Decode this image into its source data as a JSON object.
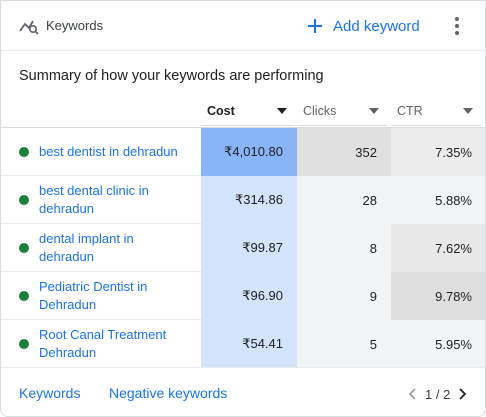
{
  "header": {
    "title": "Keywords",
    "add_label": "Add keyword"
  },
  "summary": "Summary of how your keywords are performing",
  "columns": [
    {
      "label": "Cost",
      "active": true
    },
    {
      "label": "Clicks",
      "active": false
    },
    {
      "label": "CTR",
      "active": false
    }
  ],
  "rows": [
    {
      "keyword": "best dentist in dehradun",
      "cost": "₹4,010.80",
      "clicks": "352",
      "ctr": "7.35%",
      "cost_bg": "#8ab4f8",
      "ctr_bg": "#ececec"
    },
    {
      "keyword": "best dental clinic in dehradun",
      "cost": "₹314.86",
      "clicks": "28",
      "ctr": "5.88%",
      "cost_bg": "#d2e3fc",
      "ctr_bg": "#f1f3f4"
    },
    {
      "keyword": "dental implant in dehradun",
      "cost": "₹99.87",
      "clicks": "8",
      "ctr": "7.62%",
      "cost_bg": "#d2e3fc",
      "ctr_bg": "#e8e8e8"
    },
    {
      "keyword": "Pediatric Dentist in Dehradun",
      "cost": "₹96.90",
      "clicks": "9",
      "ctr": "9.78%",
      "cost_bg": "#d2e3fc",
      "ctr_bg": "#dedede"
    },
    {
      "keyword": "Root Canal Treatment Dehradun",
      "cost": "₹54.41",
      "clicks": "5",
      "ctr": "5.95%",
      "cost_bg": "#d2e3fc",
      "ctr_bg": "#f1f3f4"
    }
  ],
  "clicks_bg": [
    "#e0e0e0",
    "#f1f3f4",
    "#f1f3f4",
    "#f1f3f4",
    "#f1f3f4"
  ],
  "footer": {
    "keywords_link": "Keywords",
    "negative_link": "Negative keywords",
    "page_indicator": "1 / 2"
  },
  "colors": {
    "accent": "#1a73e8",
    "status_enabled": "#188038"
  }
}
